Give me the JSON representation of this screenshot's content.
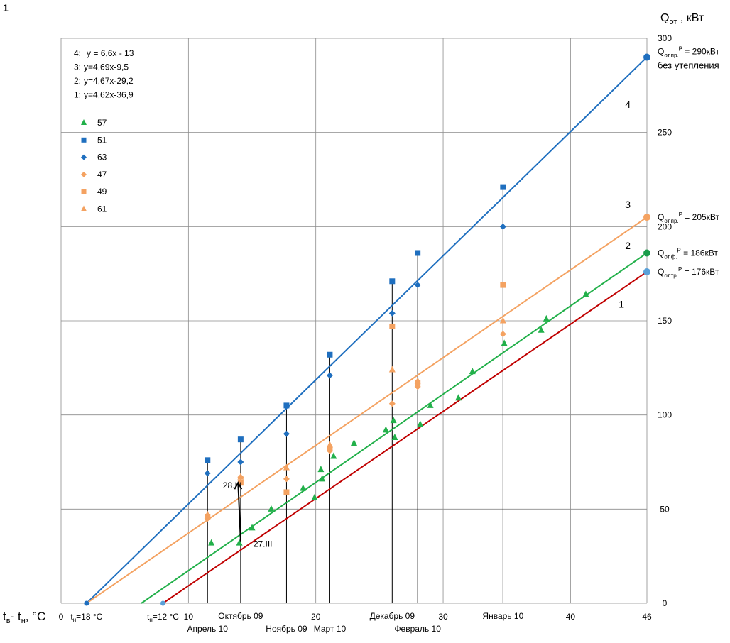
{
  "figure_number": "1",
  "chart_data": {
    "type": "scatter",
    "ylabel_main": "Q",
    "ylabel_sub": "от",
    "ylabel_rest": " , кВт",
    "xlabel_main": "t",
    "xlabel_sub1": "в",
    "xlabel_mid": "- t",
    "xlabel_sub2": "н",
    "xlabel_rest": ", °С",
    "xlim": [
      0,
      46
    ],
    "ylim": [
      0,
      300
    ],
    "x_ticks": [
      {
        "value": 0,
        "label": "0"
      },
      {
        "value": 10,
        "label": "10"
      },
      {
        "value": 20,
        "label": "20"
      },
      {
        "value": 30,
        "label": "30"
      },
      {
        "value": 40,
        "label": "40"
      },
      {
        "value": 46,
        "label": "46"
      }
    ],
    "y_ticks": [
      {
        "value": 0,
        "label": "0"
      },
      {
        "value": 50,
        "label": "50"
      },
      {
        "value": 100,
        "label": "100"
      },
      {
        "value": 150,
        "label": "150"
      },
      {
        "value": 200,
        "label": "200"
      },
      {
        "value": 250,
        "label": "250"
      },
      {
        "value": 300,
        "label": "300"
      }
    ],
    "x_gridlines": [
      0,
      10,
      20,
      30,
      40,
      46
    ],
    "y_gridlines": [
      50,
      100,
      150,
      200,
      250,
      300
    ],
    "lines": [
      {
        "name": "4",
        "equation": "y = 6,6x - 13",
        "x": [
          2,
          46
        ],
        "y": [
          0,
          290
        ],
        "color": "#1f6fbf",
        "end_label_main": "Q",
        "end_label_sub": "от.пр.",
        "end_label_sup": "Р",
        "end_label_rest": " = 290кВт",
        "end_label_line2": "без утепления",
        "endpoint_color": "#1f6fbf"
      },
      {
        "name": "3",
        "equation": "y=4,69x-9,5",
        "x": [
          2,
          46
        ],
        "y": [
          0,
          205
        ],
        "color": "#f4a261",
        "end_label_main": "Q",
        "end_label_sub": "от.пр.",
        "end_label_sup": "Р",
        "end_label_rest": " = 205кВт",
        "endpoint_color": "#f4a261"
      },
      {
        "name": "2",
        "equation": "y=4,67x-29,2",
        "x": [
          6.3,
          46
        ],
        "y": [
          0,
          186
        ],
        "color": "#22b04a",
        "end_label_main": "Q",
        "end_label_sub": "от.ф.",
        "end_label_sup": "Р",
        "end_label_rest": " = 186кВт",
        "endpoint_color": "#1a9c4a"
      },
      {
        "name": "1",
        "equation": "y=4,62x-36,9",
        "x": [
          8,
          46
        ],
        "y": [
          0,
          176
        ],
        "color": "#c00000",
        "end_label_main": "Q",
        "end_label_sub": "от.тр.",
        "end_label_sup": "Р",
        "end_label_rest": " = 176кВт",
        "endpoint_color": "#5aa0d8"
      }
    ],
    "equations_legend": [
      {
        "num": "4:",
        "text": "y = 6,6x - 13"
      },
      {
        "num": "3:",
        "text": "y=4,69x-9,5"
      },
      {
        "num": "2:",
        "text": "y=4,67x-29,2"
      },
      {
        "num": "1:",
        "text": "y=4,62x-36,9"
      }
    ],
    "line_number_labels": [
      {
        "text": "4",
        "x": 44.5,
        "y": 263
      },
      {
        "text": "3",
        "x": 44.5,
        "y": 210
      },
      {
        "text": "2",
        "x": 44.5,
        "y": 188
      },
      {
        "text": "1",
        "x": 44,
        "y": 157
      }
    ],
    "series": [
      {
        "name": "57",
        "marker": "triangle",
        "color": "#22b04a",
        "points": [
          [
            11.8,
            32
          ],
          [
            14,
            32
          ],
          [
            15,
            40
          ],
          [
            16.5,
            50
          ],
          [
            19,
            61
          ],
          [
            19.9,
            56
          ],
          [
            20.4,
            71
          ],
          [
            20.5,
            66
          ],
          [
            21.4,
            78
          ],
          [
            23,
            85
          ],
          [
            25.5,
            92
          ],
          [
            26.1,
            97
          ],
          [
            26.2,
            88
          ],
          [
            28.2,
            95
          ],
          [
            29,
            105
          ],
          [
            31.2,
            109
          ],
          [
            32.3,
            123
          ],
          [
            34.8,
            138
          ],
          [
            37.7,
            145
          ],
          [
            38.1,
            151
          ],
          [
            41.2,
            164
          ]
        ]
      },
      {
        "name": "51",
        "marker": "square",
        "color": "#1f6fbf",
        "points": [
          [
            11.5,
            76
          ],
          [
            14.1,
            87
          ],
          [
            17.7,
            105
          ],
          [
            21.1,
            132
          ],
          [
            26,
            171
          ],
          [
            28,
            186
          ],
          [
            34.7,
            221
          ]
        ]
      },
      {
        "name": "63",
        "marker": "diamond",
        "color": "#1f6fbf",
        "points": [
          [
            11.5,
            69
          ],
          [
            14.1,
            75
          ],
          [
            17.7,
            90
          ],
          [
            21.1,
            121
          ],
          [
            26,
            154
          ],
          [
            28,
            169
          ],
          [
            34.7,
            200
          ]
        ]
      },
      {
        "name": "47",
        "marker": "diamond",
        "color": "#f4a261",
        "points": [
          [
            11.5,
            45
          ],
          [
            14.1,
            67
          ],
          [
            17.7,
            66
          ],
          [
            21.1,
            81
          ],
          [
            26,
            106
          ],
          [
            28,
            115
          ],
          [
            34.7,
            143
          ]
        ]
      },
      {
        "name": "49",
        "marker": "square",
        "color": "#f4a261",
        "points": [
          [
            11.5,
            46
          ],
          [
            14.1,
            64
          ],
          [
            17.7,
            59
          ],
          [
            21.1,
            82
          ],
          [
            26,
            147
          ],
          [
            28,
            117
          ],
          [
            34.7,
            169
          ]
        ]
      },
      {
        "name": "61",
        "marker": "triangle",
        "color": "#f4a261",
        "points": [
          [
            11.5,
            47
          ],
          [
            14.1,
            67
          ],
          [
            17.7,
            72
          ],
          [
            21.1,
            84
          ],
          [
            26,
            124
          ],
          [
            28,
            118
          ],
          [
            34.7,
            150
          ]
        ]
      }
    ],
    "month_lines": [
      {
        "x": 11.5,
        "y_top": 76,
        "label": "Апрель 10",
        "row": 2
      },
      {
        "x": 14.1,
        "y_top": 87,
        "label": "Октябрь 09",
        "row": 1
      },
      {
        "x": 17.7,
        "y_top": 105,
        "label": "Ноябрь 09",
        "row": 2
      },
      {
        "x": 21.1,
        "y_top": 132,
        "label": "Март 10",
        "row": 2
      },
      {
        "x": 26,
        "y_top": 171,
        "label": "Декабрь 09",
        "row": 1
      },
      {
        "x": 28,
        "y_top": 186,
        "label": "Февраль 10",
        "row": 2
      },
      {
        "x": 34.7,
        "y_top": 221,
        "label": "Январь 10",
        "row": 1
      }
    ],
    "annotations": [
      {
        "text": "28.III",
        "x": 12.7,
        "y": 61
      },
      {
        "text": "27.III",
        "x": 15.1,
        "y": 30
      }
    ],
    "arrow": {
      "from": [
        14.1,
        33
      ],
      "to": [
        13.9,
        64
      ]
    },
    "bottom_markers": [
      {
        "x": 2,
        "label_main": "t",
        "label_sub": "н",
        "label_rest": "=18 °С",
        "color": "#1f6fbf"
      },
      {
        "x": 8,
        "label_main": "t",
        "label_sub": "н",
        "label_rest": "=12 °С",
        "color": "#5aa0d8"
      }
    ]
  }
}
